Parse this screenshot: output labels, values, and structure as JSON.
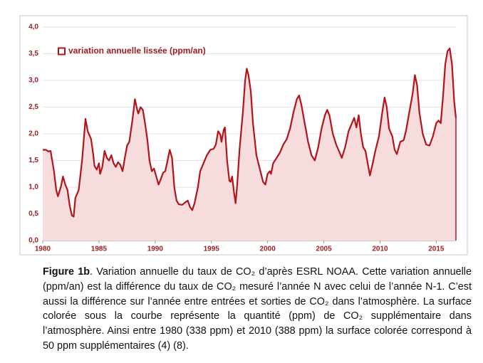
{
  "chart_data": {
    "type": "area",
    "legend_position": "upper left",
    "grid": true,
    "xlim": [
      1980,
      2016.75
    ],
    "ylim": [
      0,
      4
    ],
    "xticks": [
      1980,
      1985,
      1990,
      1995,
      2000,
      2005,
      2010,
      2015
    ],
    "yticks": [
      {
        "value": 0,
        "label": "0,0"
      },
      {
        "value": 0.5,
        "label": "0,5"
      },
      {
        "value": 1,
        "label": "1,0"
      },
      {
        "value": 1.5,
        "label": "1,5"
      },
      {
        "value": 2,
        "label": "2,0"
      },
      {
        "value": 2.5,
        "label": "2,5"
      },
      {
        "value": 3,
        "label": "3,0"
      },
      {
        "value": 3.5,
        "label": "3,5"
      },
      {
        "value": 4,
        "label": "4,0"
      }
    ],
    "x": [
      1980.0,
      1980.3,
      1980.5,
      1980.7,
      1981.0,
      1981.2,
      1981.35,
      1981.6,
      1981.8,
      1982.0,
      1982.2,
      1982.4,
      1982.6,
      1982.75,
      1982.9,
      1983.2,
      1983.5,
      1983.8,
      1984.0,
      1984.3,
      1984.5,
      1984.6,
      1984.8,
      1985.0,
      1985.1,
      1985.3,
      1985.5,
      1985.7,
      1985.9,
      1986.1,
      1986.3,
      1986.5,
      1986.7,
      1986.9,
      1987.1,
      1987.3,
      1987.5,
      1987.7,
      1988.0,
      1988.2,
      1988.4,
      1988.5,
      1988.7,
      1988.9,
      1989.1,
      1989.3,
      1989.5,
      1989.7,
      1989.9,
      1990.1,
      1990.3,
      1990.5,
      1990.7,
      1990.9,
      1991.1,
      1991.3,
      1991.5,
      1991.7,
      1991.9,
      1992.1,
      1992.4,
      1992.7,
      1992.9,
      1993.1,
      1993.3,
      1993.5,
      1993.8,
      1994.0,
      1994.3,
      1994.6,
      1994.9,
      1995.2,
      1995.4,
      1995.6,
      1995.8,
      1995.9,
      1996.1,
      1996.2,
      1996.4,
      1996.6,
      1996.7,
      1996.85,
      1997.0,
      1997.15,
      1997.3,
      1997.5,
      1997.8,
      1998.0,
      1998.15,
      1998.3,
      1998.5,
      1998.7,
      1999.0,
      1999.3,
      1999.6,
      1999.8,
      2000.0,
      2000.2,
      2000.3,
      2000.5,
      2000.8,
      2001.1,
      2001.4,
      2001.7,
      2002.0,
      2002.3,
      2002.6,
      2002.8,
      2003.0,
      2003.3,
      2003.6,
      2003.9,
      2004.2,
      2004.5,
      2004.8,
      2005.1,
      2005.3,
      2005.5,
      2005.8,
      2006.1,
      2006.4,
      2006.6,
      2006.9,
      2007.2,
      2007.5,
      2007.7,
      2007.9,
      2008.1,
      2008.3,
      2008.5,
      2008.7,
      2008.9,
      2009.1,
      2009.3,
      2009.6,
      2009.9,
      2010.2,
      2010.4,
      2010.6,
      2010.8,
      2011.1,
      2011.3,
      2011.5,
      2011.8,
      2012.1,
      2012.3,
      2012.6,
      2012.9,
      2013.1,
      2013.3,
      2013.5,
      2013.8,
      2014.1,
      2014.4,
      2014.7,
      2015.0,
      2015.2,
      2015.4,
      2015.6,
      2015.8,
      2016.0,
      2016.2,
      2016.4,
      2016.6,
      2016.75
    ],
    "series": [
      {
        "name": "variation annuelle lissée (ppm/an)",
        "color": "#b3141c",
        "fill": "#f6dcdc",
        "values": [
          1.7,
          1.7,
          1.67,
          1.68,
          1.3,
          0.95,
          0.83,
          1.0,
          1.2,
          1.05,
          0.95,
          0.65,
          0.47,
          0.45,
          0.8,
          0.95,
          1.5,
          2.28,
          2.05,
          1.9,
          1.6,
          1.4,
          1.33,
          1.45,
          1.25,
          1.38,
          1.68,
          1.55,
          1.5,
          1.6,
          1.45,
          1.38,
          1.47,
          1.42,
          1.3,
          1.55,
          1.78,
          1.85,
          2.3,
          2.65,
          2.45,
          2.38,
          2.5,
          2.45,
          2.2,
          1.9,
          1.5,
          1.3,
          1.35,
          1.2,
          1.05,
          1.15,
          1.27,
          1.3,
          1.5,
          1.7,
          1.55,
          1.0,
          0.75,
          0.68,
          0.67,
          0.72,
          0.75,
          0.63,
          0.57,
          0.7,
          1.0,
          1.3,
          1.45,
          1.6,
          1.7,
          1.72,
          1.8,
          2.05,
          1.98,
          1.85,
          2.08,
          2.12,
          1.5,
          1.12,
          1.1,
          1.2,
          0.92,
          0.7,
          1.05,
          1.7,
          2.4,
          3.0,
          3.22,
          3.1,
          2.8,
          2.2,
          1.6,
          1.35,
          1.1,
          1.05,
          1.25,
          1.3,
          1.25,
          1.45,
          1.55,
          1.65,
          1.8,
          1.9,
          2.1,
          2.4,
          2.65,
          2.72,
          2.55,
          2.2,
          1.85,
          1.6,
          1.5,
          1.75,
          2.1,
          2.35,
          2.45,
          2.35,
          2.0,
          1.8,
          1.65,
          1.55,
          1.75,
          2.05,
          2.2,
          2.3,
          2.12,
          2.35,
          2.0,
          1.75,
          1.68,
          1.45,
          1.22,
          1.4,
          1.7,
          1.95,
          2.4,
          2.68,
          2.5,
          2.1,
          1.95,
          1.7,
          1.62,
          1.85,
          1.88,
          2.05,
          2.4,
          2.75,
          3.1,
          2.9,
          2.4,
          2.0,
          1.8,
          1.78,
          1.95,
          2.2,
          2.25,
          2.2,
          2.7,
          3.3,
          3.55,
          3.6,
          3.3,
          2.6,
          2.3
        ]
      }
    ]
  },
  "caption": {
    "label": "Figure 1b",
    "text": ". Variation annuelle du taux de CO₂ d’après ESRL NOAA. Cette variation annuelle (ppm/an) est la différence du taux de CO₂ mesuré l’année N avec celui de l’année N-1. C’est aussi la différence sur l’année entre entrées et sorties de CO₂ dans l’atmosphère. La surface colorée sous la courbe  représente la quantité (ppm) de CO₂ supplémentaire dans l’atmosphère. Ainsi entre 1980 (338 ppm) et 2010 (388 ppm) la surface colorée correspond à 50 ppm supplémentaires (4) (8)."
  }
}
